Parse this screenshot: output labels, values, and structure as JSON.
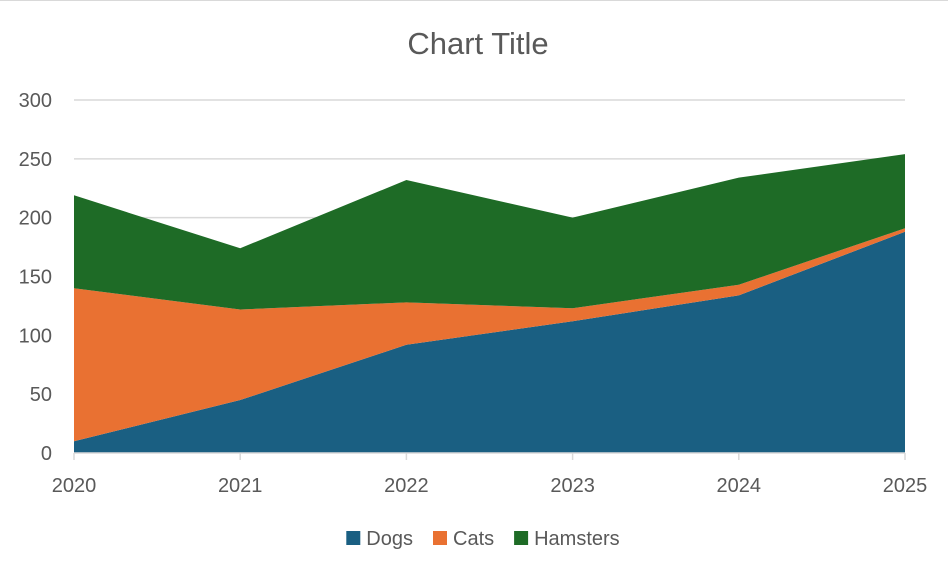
{
  "chart_data": {
    "type": "area",
    "stacked": true,
    "title": "Chart Title",
    "xlabel": "",
    "ylabel": "",
    "categories": [
      "2020",
      "2021",
      "2022",
      "2023",
      "2024",
      "2025"
    ],
    "series": [
      {
        "name": "Dogs",
        "values": [
          10,
          45,
          92,
          112,
          134,
          188
        ],
        "color": "#1a5f82"
      },
      {
        "name": "Cats",
        "values": [
          130,
          77,
          36,
          11,
          9,
          3
        ],
        "color": "#e97132"
      },
      {
        "name": "Hamsters",
        "values": [
          79,
          52,
          104,
          77,
          91,
          63
        ],
        "color": "#1e6b26"
      }
    ],
    "ylim": [
      0,
      300
    ],
    "yticks": [
      0,
      50,
      100,
      150,
      200,
      250,
      300
    ],
    "ytick_labels": [
      "0",
      "50",
      "100",
      "150",
      "200",
      "250",
      "300"
    ],
    "grid": true,
    "legend": "bottom"
  }
}
